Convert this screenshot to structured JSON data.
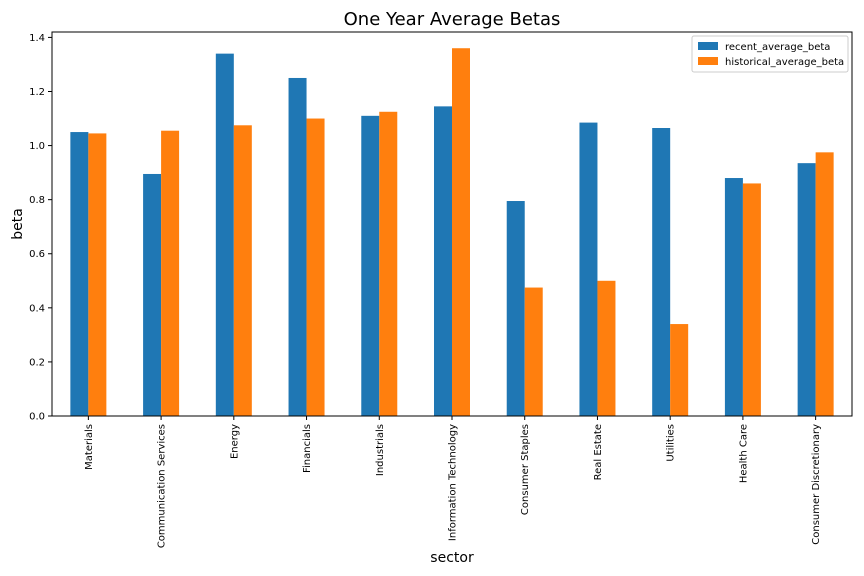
{
  "chart_data": {
    "type": "bar",
    "title": "One Year Average Betas",
    "xlabel": "sector",
    "ylabel": "beta",
    "ylim": [
      0,
      1.42
    ],
    "yticks": [
      0.0,
      0.2,
      0.4,
      0.6,
      0.8,
      1.0,
      1.2,
      1.4
    ],
    "ytick_labels": [
      "0.0",
      "0.2",
      "0.4",
      "0.6",
      "0.8",
      "1.0",
      "1.2",
      "1.4"
    ],
    "grid": false,
    "legend_position": "top-right",
    "categories": [
      "Materials",
      "Communication Services",
      "Energy",
      "Financials",
      "Industrials",
      "Information Technology",
      "Consumer Staples",
      "Real Estate",
      "Utilities",
      "Health Care",
      "Consumer Discretionary"
    ],
    "series": [
      {
        "name": "recent_average_beta",
        "color": "#1f77b4",
        "values": [
          1.05,
          0.895,
          1.34,
          1.25,
          1.11,
          1.145,
          0.795,
          1.085,
          1.065,
          0.88,
          0.935
        ]
      },
      {
        "name": "historical_average_beta",
        "color": "#ff7f0e",
        "values": [
          1.045,
          1.055,
          1.075,
          1.1,
          1.125,
          1.36,
          0.475,
          0.5,
          0.34,
          0.86,
          0.975
        ]
      }
    ]
  }
}
